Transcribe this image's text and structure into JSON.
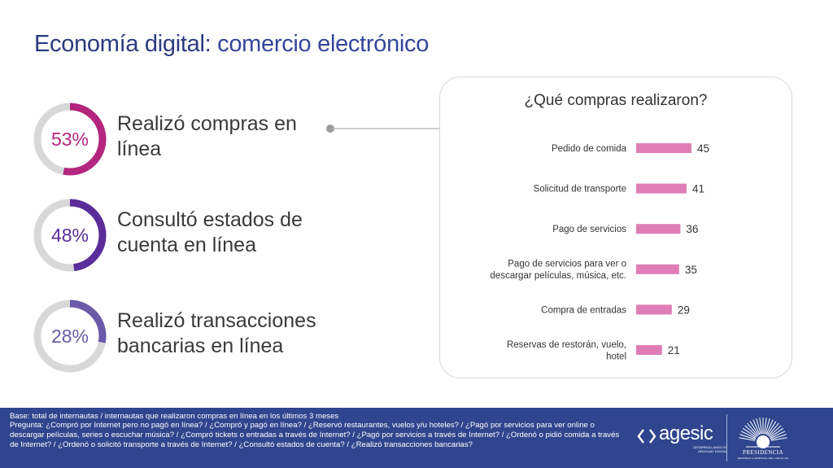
{
  "title": {
    "strong": "Economía digital:",
    "light": "comercio electrónico"
  },
  "kpis": [
    {
      "pct": "53%",
      "value": 53,
      "label_l1": "Realizó compras en",
      "label_l2": "línea",
      "color": "#b4257e"
    },
    {
      "pct": "48%",
      "value": 48,
      "label_l1": "Consultó estados de",
      "label_l2": "cuenta en línea",
      "color": "#5a2d9a"
    },
    {
      "pct": "28%",
      "value": 28,
      "label_l1": "Realizó transacciones",
      "label_l2": "bancarias en línea",
      "color": "#6a5aa8"
    }
  ],
  "chart_data": {
    "type": "bar",
    "orientation": "horizontal",
    "title": "¿Qué compras realizaron?",
    "categories": [
      [
        "Pedido de comida"
      ],
      [
        "Solicitud de transporte"
      ],
      [
        "Pago de servicios"
      ],
      [
        "Pago de servicios para ver o",
        "descargar películas, música, etc."
      ],
      [
        "Compra de entradas"
      ],
      [
        "Reservas de restorán, vuelo,",
        "hotel"
      ]
    ],
    "values": [
      45,
      41,
      36,
      35,
      29,
      21
    ],
    "bar_color": "#e07db6",
    "xlim": [
      0,
      50
    ],
    "grid": false,
    "legend": "none"
  },
  "footer": {
    "base": "Base: total de internautas / internautas que realizaron compras en línea en los últimos 3 meses",
    "question": "Pregunta: ¿Compró por Internet pero no pagó en línea? / ¿Compró y pagó en línea? /  ¿Reservó restaurantes, vuelos y/u hoteles? / ¿Pagó por servicios para ver online o descargar películas, series o escuchar música? / ¿Compró tickets o entradas a través de Internet? / ¿Pagó por servicios a través de Internet? /  ¿Ordenó o pidió comida a través de Internet? /  ¿Ordenó o solicitó transporte a través de Internet? / ¿Consultó estados de cuenta? / ¿Realizó transacciones bancarias?",
    "agesic_word": "agesic",
    "agesic_sub": "DESARROLLANDO EL URUGUAY DIGITAL",
    "presidencia_word": "PRESIDENCIA",
    "presidencia_sub": "REPÚBLICA ORIENTAL DEL URUGUAY",
    "bg": "#2f468e"
  }
}
